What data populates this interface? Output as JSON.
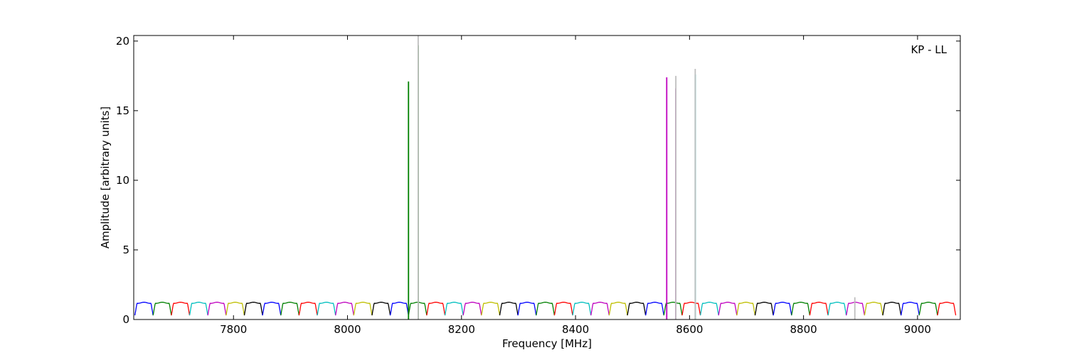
{
  "chart_data": {
    "type": "line",
    "annotation": "KP - LL",
    "xlabel": "Frequency [MHz]",
    "ylabel": "Amplitude [arbitrary units]",
    "xlim": [
      7625,
      9075
    ],
    "ylim": [
      0,
      20.4
    ],
    "xticks": [
      7800,
      8000,
      8200,
      8400,
      8600,
      8800,
      9000
    ],
    "yticks": [
      0,
      5,
      10,
      15,
      20
    ],
    "grid": false,
    "channel_width_mhz": 32,
    "channel_starts_mhz": [
      7627,
      7659,
      7691,
      7723,
      7755,
      7787,
      7819,
      7851,
      7883,
      7915,
      7947,
      7979,
      8011,
      8043,
      8075,
      8107,
      8139,
      8171,
      8203,
      8235,
      8267,
      8299,
      8331,
      8363,
      8395,
      8427,
      8459,
      8491,
      8523,
      8555,
      8587,
      8619,
      8651,
      8683,
      8715,
      8747,
      8779,
      8811,
      8843,
      8875,
      8907,
      8939,
      8971,
      9003,
      9035
    ],
    "channel_colors": [
      "#0000ff",
      "#008000",
      "#ff0000",
      "#00bfbf",
      "#bf00bf",
      "#bfbf00",
      "#000000"
    ],
    "channel_peak_amplitude": 1.2,
    "channel_edge_amplitude": 0.3,
    "spikes": [
      {
        "freq": 8107,
        "amplitude": 17.1,
        "color": "#008000"
      },
      {
        "freq": 8124,
        "amplitude": 19.7,
        "color": "#008000"
      },
      {
        "freq": 8124,
        "amplitude": 20.4,
        "color": "#bfbfbf"
      },
      {
        "freq": 8560,
        "amplitude": 17.4,
        "color": "#bf00bf"
      },
      {
        "freq": 8576,
        "amplitude": 16.6,
        "color": "#bf00bf"
      },
      {
        "freq": 8576,
        "amplitude": 17.5,
        "color": "#bfbfbf"
      },
      {
        "freq": 8610,
        "amplitude": 17.6,
        "color": "#00bfbf"
      },
      {
        "freq": 8610,
        "amplitude": 18.0,
        "color": "#bfbfbf"
      },
      {
        "freq": 8890,
        "amplitude": 1.6,
        "color": "#bfbfbf"
      }
    ]
  }
}
